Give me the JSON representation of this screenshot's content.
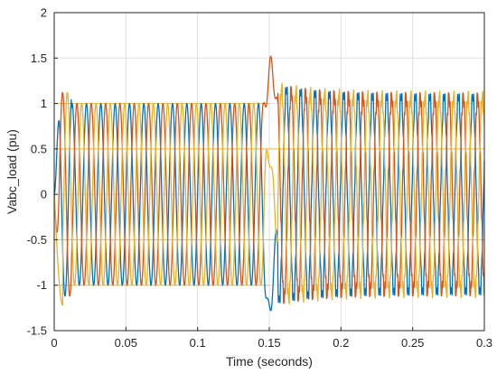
{
  "chart_data": {
    "type": "line",
    "title": "",
    "xlabel": "Time (seconds)",
    "ylabel": "Vabc_load (pu)",
    "xlim": [
      0,
      0.3
    ],
    "ylim": [
      -1.5,
      2
    ],
    "grid": true,
    "x_ticks": [
      0,
      0.05,
      0.1,
      0.15,
      0.2,
      0.25,
      0.3
    ],
    "x_tick_labels": [
      "0",
      "0.05",
      "0.1",
      "0.15",
      "0.2",
      "0.25",
      "0.3"
    ],
    "y_ticks": [
      -1.5,
      -1,
      -0.5,
      0,
      0.5,
      1,
      1.5,
      2
    ],
    "y_tick_labels": [
      "-1.5",
      "-1",
      "-0.5",
      "0",
      "0.5",
      "1",
      "1.5",
      "2"
    ],
    "colors": [
      "#0072BD",
      "#D95319",
      "#EDB120"
    ],
    "reference_lines": [
      {
        "y": 1,
        "x_range": [
          0,
          0.15
        ]
      },
      {
        "y": 0.5,
        "x_range": [
          0,
          0.3
        ]
      },
      {
        "y": -0.5,
        "x_range": [
          0,
          0.3
        ]
      },
      {
        "y": -1,
        "x_range": [
          0,
          0.15
        ]
      }
    ],
    "series": [
      {
        "color": "#0072BD",
        "phase_deg": 0,
        "amplitude_before": 1.0,
        "amplitude_after": 1.08,
        "frequency_hz": 100,
        "disturbance_time": 0.15,
        "peak_values": [
          0.97,
          -1.28,
          1.22
        ]
      },
      {
        "color": "#D95319",
        "phase_deg": -120,
        "amplitude_before": 1.0,
        "amplitude_after": 1.08,
        "frequency_hz": 100,
        "disturbance_time": 0.15,
        "peak_values": [
          1.12,
          1.52,
          -1.15
        ]
      },
      {
        "color": "#EDB120",
        "phase_deg": 120,
        "amplitude_before": 1.0,
        "amplitude_after": 1.08,
        "frequency_hz": 100,
        "disturbance_time": 0.15,
        "peak_values": [
          -1.22,
          1.0,
          -0.25
        ]
      }
    ]
  }
}
